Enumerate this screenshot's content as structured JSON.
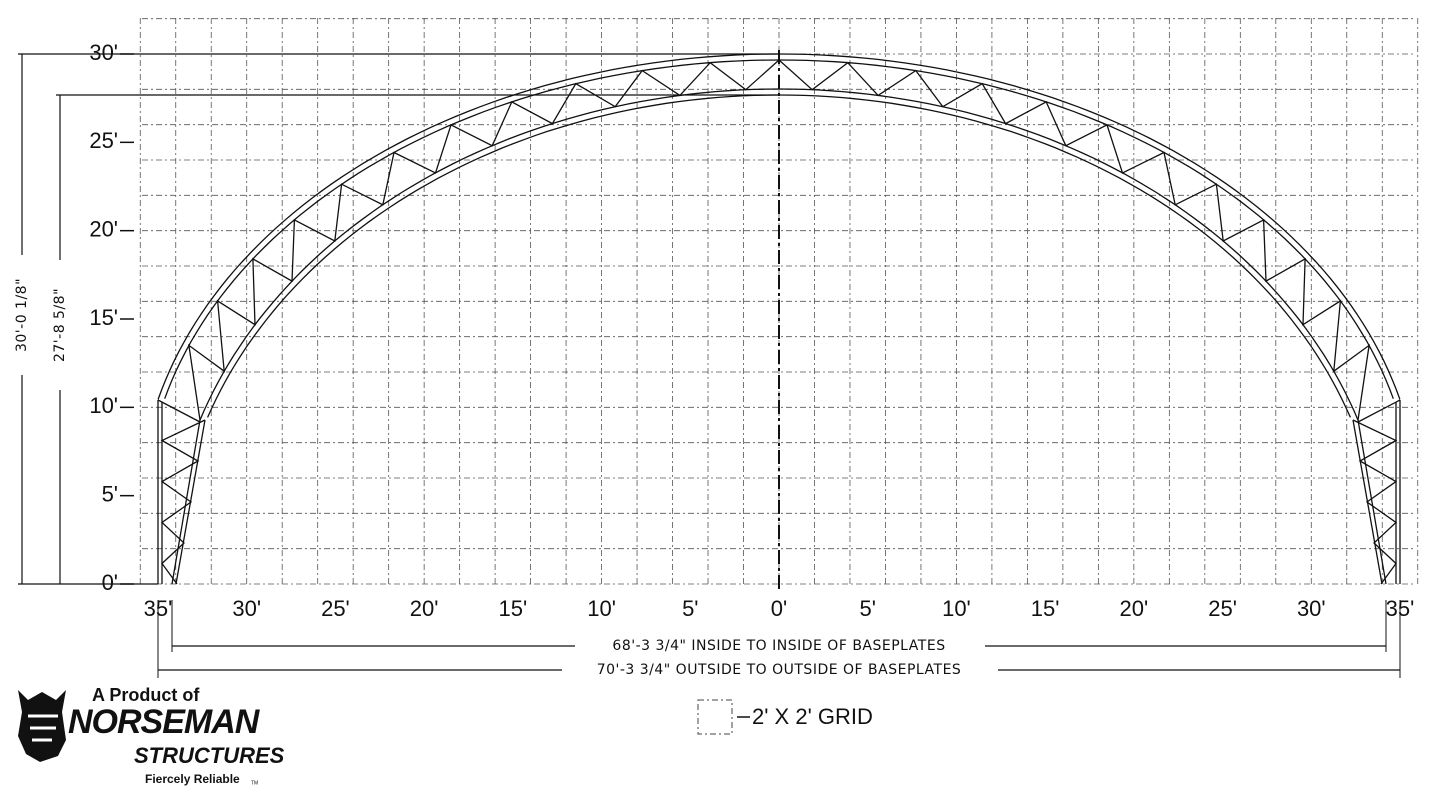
{
  "axes": {
    "y_labels": [
      "0'",
      "5'",
      "10'",
      "15'",
      "20'",
      "25'",
      "30'"
    ],
    "x_labels": [
      "35'",
      "30'",
      "25'",
      "20'",
      "15'",
      "10'",
      "5'",
      "0'",
      "5'",
      "10'",
      "15'",
      "20'",
      "25'",
      "30'",
      "35'"
    ]
  },
  "dimensions": {
    "outer_height": "30'-0 1/8\"",
    "inner_height": "27'-8 5/8\"",
    "inside_width": "68'-3 3/4\" INSIDE TO INSIDE OF BASEPLATES",
    "outside_width": "70'-3 3/4\" OUTSIDE TO OUTSIDE OF BASEPLATES"
  },
  "legend": "2' X 2' GRID",
  "logo": {
    "tagline": "A Product of",
    "brand": "NORSEMAN",
    "sub": "STRUCTURES",
    "motto": "Fiercely Reliable",
    "tm": "TM"
  }
}
